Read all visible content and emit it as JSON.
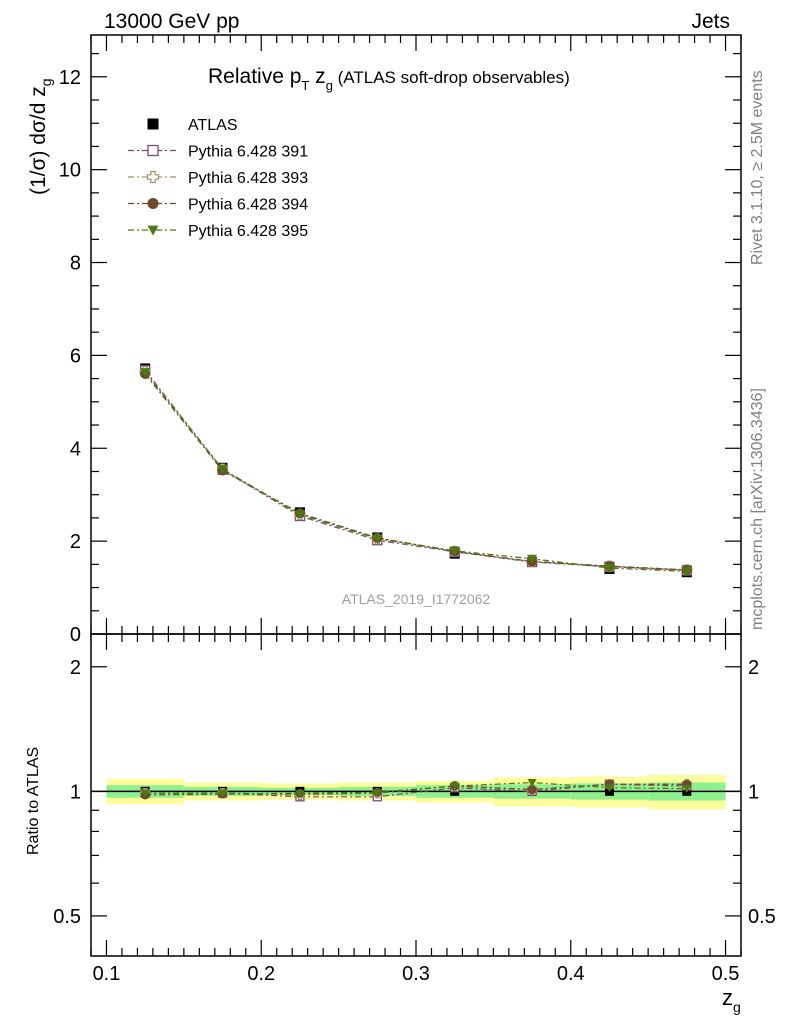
{
  "header": {
    "left": "13000 GeV pp",
    "right": "Jets"
  },
  "side": {
    "rivet": "Rivet 3.1.10, ≥ 2.5M events",
    "mcplots": "mcplots.cern.ch [arXiv:1306.3436]"
  },
  "watermark": "ATLAS_2019_I1772062",
  "title": {
    "main": "Relative p",
    "sub_T": "T",
    "mid": " z",
    "sub_g": "g",
    "rest": " (ATLAS soft-drop observables)"
  },
  "ylabel": {
    "main": "(1/σ) dσ/d z",
    "sub": "g"
  },
  "xlabel": {
    "main": "z",
    "sub": "g"
  },
  "ratio_ylabel": "Ratio to ATLAS",
  "legend": [
    {
      "label": "ATLAS",
      "color": "#000000",
      "marker": "filled-square"
    },
    {
      "label": "Pythia 6.428 391",
      "color": "#7b4a6a",
      "marker": "open-square"
    },
    {
      "label": "Pythia 6.428 393",
      "color": "#a09060",
      "marker": "open-cross"
    },
    {
      "label": "Pythia 6.428 394",
      "color": "#6b4a2e",
      "marker": "filled-circle"
    },
    {
      "label": "Pythia 6.428 395",
      "color": "#4a7a10",
      "marker": "filled-triangle-down"
    }
  ],
  "main_yticks": [
    "0",
    "2",
    "4",
    "6",
    "8",
    "10",
    "12"
  ],
  "ratio_yticks_left": [
    "0.5",
    "1",
    "2"
  ],
  "ratio_yticks_right": [
    "0.5",
    "1",
    "2"
  ],
  "xticks": [
    "0.1",
    "0.2",
    "0.3",
    "0.4",
    "0.5"
  ],
  "chart_data": [
    {
      "type": "scatter",
      "x": [
        0.125,
        0.175,
        0.225,
        0.275,
        0.325,
        0.375,
        0.425,
        0.475
      ],
      "x_bins": [
        [
          0.1,
          0.15
        ],
        [
          0.15,
          0.2
        ],
        [
          0.2,
          0.25
        ],
        [
          0.25,
          0.3
        ],
        [
          0.3,
          0.35
        ],
        [
          0.35,
          0.4
        ],
        [
          0.4,
          0.45
        ],
        [
          0.45,
          0.5
        ]
      ],
      "series": [
        {
          "name": "ATLAS",
          "values": [
            5.72,
            3.58,
            2.62,
            2.08,
            1.73,
            1.55,
            1.4,
            1.33
          ]
        },
        {
          "name": "Pythia 6.428 391",
          "values": [
            5.68,
            3.54,
            2.54,
            2.02,
            1.77,
            1.55,
            1.45,
            1.37
          ]
        },
        {
          "name": "Pythia 6.428 393",
          "values": [
            5.65,
            3.55,
            2.57,
            2.05,
            1.78,
            1.56,
            1.46,
            1.38
          ]
        },
        {
          "name": "Pythia 6.428 394",
          "values": [
            5.6,
            3.52,
            2.6,
            2.07,
            1.78,
            1.56,
            1.46,
            1.38
          ]
        },
        {
          "name": "Pythia 6.428 395",
          "values": [
            5.64,
            3.55,
            2.58,
            2.06,
            1.79,
            1.62,
            1.42,
            1.35
          ]
        }
      ],
      "ylabel": "(1/σ) dσ/d z_g",
      "xlim": [
        0.09,
        0.51
      ],
      "ylim": [
        0,
        12.9
      ]
    },
    {
      "type": "scatter",
      "x": [
        0.125,
        0.175,
        0.225,
        0.275,
        0.325,
        0.375,
        0.425,
        0.475
      ],
      "bands": {
        "stat_inner": [
          0.035,
          0.025,
          0.02,
          0.025,
          0.035,
          0.04,
          0.045,
          0.05
        ],
        "total_outer": [
          0.07,
          0.05,
          0.045,
          0.05,
          0.06,
          0.08,
          0.085,
          0.095
        ]
      },
      "series": [
        {
          "name": "Pythia 6.428 391",
          "values": [
            0.99,
            0.99,
            0.97,
            0.97,
            1.02,
            1.0,
            1.04,
            1.03
          ]
        },
        {
          "name": "Pythia 6.428 393",
          "values": [
            0.99,
            0.99,
            0.98,
            0.99,
            1.03,
            1.01,
            1.04,
            1.04
          ]
        },
        {
          "name": "Pythia 6.428 394",
          "values": [
            0.98,
            0.985,
            0.99,
            0.995,
            1.03,
            1.01,
            1.04,
            1.04
          ]
        },
        {
          "name": "Pythia 6.428 395",
          "values": [
            0.99,
            0.99,
            0.985,
            0.99,
            1.03,
            1.05,
            1.02,
            1.015
          ]
        }
      ],
      "ylabel": "Ratio to ATLAS",
      "yscale": "log",
      "ylim": [
        0.4,
        2.4
      ],
      "xlabel": "z_g"
    }
  ]
}
